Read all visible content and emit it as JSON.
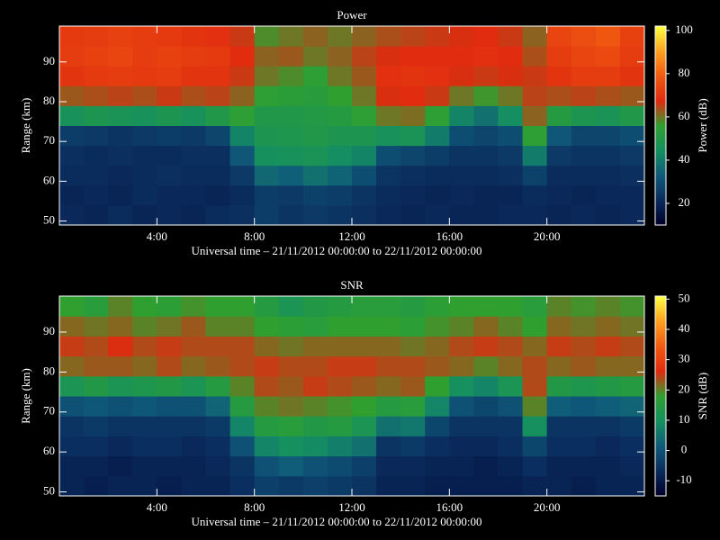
{
  "chart_data": [
    {
      "type": "heatmap",
      "title": "Power",
      "x_label": "Universal time – 21/11/2012 00:00:00 to 22/11/2012 00:00:00",
      "y_label": "Range (km)",
      "colorbar_label": "Power (dB)",
      "xlim": [
        0,
        24
      ],
      "xticks": [
        {
          "value": 4,
          "label": "4:00"
        },
        {
          "value": 8,
          "label": "8:00"
        },
        {
          "value": 12,
          "label": "12:00"
        },
        {
          "value": 16,
          "label": "16:00"
        },
        {
          "value": 20,
          "label": "20:00"
        }
      ],
      "ylim": [
        49,
        99
      ],
      "yticks": [
        50,
        60,
        70,
        80,
        90
      ],
      "zlim": [
        10,
        102
      ],
      "zticks": [
        20,
        40,
        60,
        80,
        100
      ],
      "colormap": [
        "#000028",
        "#0a2a5c",
        "#0f5a7a",
        "#159060",
        "#2fa030",
        "#e02a10",
        "#f05a10",
        "#ffa020",
        "#ffff40"
      ],
      "x_bins": [
        0,
        1,
        2,
        3,
        4,
        5,
        6,
        7,
        8,
        9,
        10,
        11,
        12,
        13,
        14,
        15,
        16,
        17,
        18,
        19,
        20,
        21,
        22,
        23,
        24
      ],
      "y_bins": [
        49,
        54,
        59,
        64,
        69,
        74,
        79,
        84,
        89,
        94,
        99
      ],
      "z": [
        [
          21,
          20,
          22,
          23,
          26,
          46,
          63,
          70,
          72,
          71
        ],
        [
          20,
          21,
          22,
          22,
          25,
          48,
          64,
          71,
          73,
          72
        ],
        [
          22,
          20,
          21,
          23,
          24,
          47,
          65,
          72,
          74,
          73
        ],
        [
          20,
          22,
          22,
          22,
          25,
          46,
          64,
          71,
          72,
          72
        ],
        [
          21,
          21,
          23,
          22,
          26,
          48,
          66,
          72,
          73,
          71
        ],
        [
          20,
          21,
          22,
          23,
          25,
          46,
          64,
          70,
          72,
          70
        ],
        [
          22,
          20,
          22,
          23,
          28,
          50,
          65,
          70,
          71,
          69
        ],
        [
          23,
          22,
          25,
          32,
          42,
          55,
          62,
          66,
          68,
          66
        ],
        [
          26,
          26,
          36,
          45,
          48,
          50,
          55,
          60,
          62,
          58
        ],
        [
          24,
          25,
          34,
          46,
          49,
          50,
          54,
          58,
          63,
          60
        ],
        [
          25,
          27,
          38,
          47,
          50,
          51,
          53,
          55,
          60,
          62
        ],
        [
          24,
          26,
          35,
          44,
          48,
          52,
          56,
          60,
          62,
          60
        ],
        [
          23,
          24,
          30,
          42,
          48,
          55,
          60,
          63,
          65,
          62
        ],
        [
          21,
          22,
          24,
          30,
          46,
          60,
          67,
          69,
          67,
          64
        ],
        [
          20,
          21,
          23,
          28,
          47,
          61,
          68,
          70,
          68,
          65
        ],
        [
          21,
          20,
          22,
          26,
          40,
          55,
          66,
          69,
          68,
          66
        ],
        [
          20,
          21,
          22,
          24,
          30,
          42,
          60,
          67,
          68,
          67
        ],
        [
          20,
          20,
          22,
          24,
          28,
          38,
          57,
          66,
          69,
          68
        ],
        [
          21,
          20,
          23,
          25,
          30,
          44,
          60,
          67,
          68,
          66
        ],
        [
          21,
          22,
          27,
          40,
          55,
          62,
          65,
          66,
          64,
          62
        ],
        [
          20,
          21,
          22,
          25,
          32,
          52,
          64,
          70,
          72,
          74
        ],
        [
          21,
          20,
          22,
          24,
          28,
          48,
          65,
          72,
          74,
          76
        ],
        [
          20,
          21,
          22,
          24,
          28,
          47,
          64,
          72,
          75,
          78
        ],
        [
          21,
          21,
          23,
          25,
          30,
          50,
          63,
          70,
          72,
          73
        ]
      ]
    },
    {
      "type": "heatmap",
      "title": "SNR",
      "x_label": "Universal time – 21/11/2012 00:00:00 to 22/11/2012 00:00:00",
      "y_label": "Range (km)",
      "colorbar_label": "SNR (dB)",
      "xlim": [
        0,
        24
      ],
      "xticks": [
        {
          "value": 4,
          "label": "4:00"
        },
        {
          "value": 8,
          "label": "8:00"
        },
        {
          "value": 12,
          "label": "12:00"
        },
        {
          "value": 16,
          "label": "16:00"
        },
        {
          "value": 20,
          "label": "20:00"
        }
      ],
      "ylim": [
        49,
        99
      ],
      "yticks": [
        50,
        60,
        70,
        80,
        90
      ],
      "zlim": [
        -15,
        51
      ],
      "zticks": [
        -10,
        0,
        10,
        20,
        30,
        40,
        50
      ],
      "colormap": [
        "#000028",
        "#0a2a5c",
        "#0f5a7a",
        "#159060",
        "#2fa030",
        "#e02a10",
        "#f05a10",
        "#ffa020",
        "#ffff40"
      ],
      "x_bins": [
        0,
        1,
        2,
        3,
        4,
        5,
        6,
        7,
        8,
        9,
        10,
        11,
        12,
        13,
        14,
        15,
        16,
        17,
        18,
        19,
        20,
        21,
        22,
        23,
        24
      ],
      "y_bins": [
        49,
        54,
        59,
        64,
        69,
        74,
        79,
        84,
        89,
        94,
        99
      ],
      "z": [
        [
          -8,
          -8,
          -6,
          -5,
          0,
          12,
          22,
          25,
          22,
          18
        ],
        [
          -9,
          -8,
          -6,
          -4,
          1,
          14,
          23,
          24,
          21,
          16
        ],
        [
          -8,
          -9,
          -7,
          -5,
          0,
          12,
          23,
          26,
          22,
          20
        ],
        [
          -8,
          -8,
          -6,
          -5,
          1,
          13,
          22,
          24,
          20,
          18
        ],
        [
          -9,
          -8,
          -6,
          -5,
          0,
          14,
          24,
          25,
          21,
          17
        ],
        [
          -8,
          -8,
          -7,
          -5,
          0,
          12,
          22,
          24,
          23,
          19
        ],
        [
          -8,
          -7,
          -6,
          -4,
          3,
          15,
          23,
          24,
          20,
          18
        ],
        [
          -6,
          -5,
          0,
          8,
          15,
          20,
          24,
          24,
          20,
          18
        ],
        [
          -3,
          0,
          8,
          15,
          20,
          24,
          25,
          22,
          18,
          15
        ],
        [
          -4,
          2,
          10,
          16,
          21,
          23,
          24,
          21,
          17,
          12
        ],
        [
          -3,
          0,
          9,
          14,
          20,
          25,
          24,
          22,
          16,
          14
        ],
        [
          -4,
          -1,
          7,
          15,
          19,
          24,
          25,
          22,
          18,
          15
        ],
        [
          -5,
          -3,
          5,
          12,
          18,
          23,
          25,
          22,
          18,
          16
        ],
        [
          -8,
          -7,
          -5,
          5,
          15,
          22,
          24,
          22,
          18,
          16
        ],
        [
          -8,
          -7,
          -4,
          6,
          16,
          23,
          24,
          21,
          17,
          15
        ],
        [
          -9,
          -8,
          -6,
          -2,
          8,
          18,
          23,
          22,
          19,
          17
        ],
        [
          -9,
          -8,
          -7,
          -5,
          0,
          10,
          22,
          24,
          20,
          18
        ],
        [
          -9,
          -9,
          -7,
          -5,
          -2,
          8,
          20,
          25,
          22,
          18
        ],
        [
          -9,
          -8,
          -6,
          -5,
          0,
          12,
          22,
          24,
          20,
          18
        ],
        [
          -8,
          -6,
          -2,
          10,
          20,
          24,
          24,
          22,
          18,
          16
        ],
        [
          -8,
          -8,
          -6,
          -5,
          2,
          14,
          22,
          25,
          22,
          20
        ],
        [
          -9,
          -8,
          -6,
          -5,
          1,
          13,
          23,
          24,
          21,
          19
        ],
        [
          -8,
          -8,
          -7,
          -5,
          2,
          14,
          22,
          25,
          22,
          20
        ],
        [
          -8,
          -7,
          -6,
          -4,
          3,
          15,
          22,
          24,
          21,
          19
        ]
      ]
    }
  ]
}
